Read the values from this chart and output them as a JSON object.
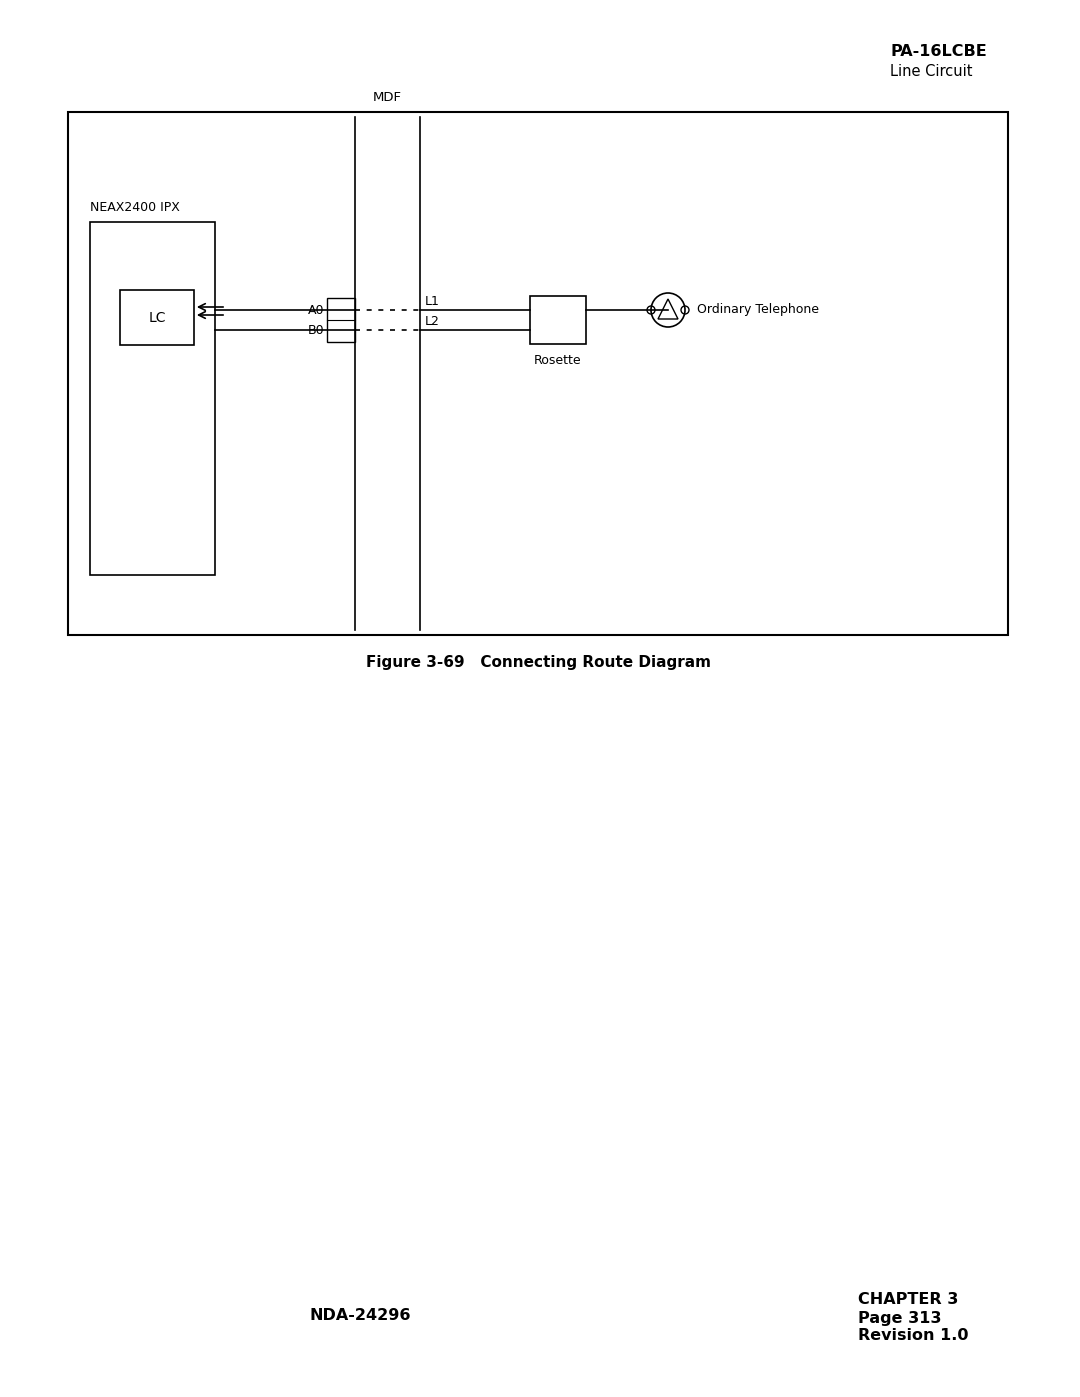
{
  "title_bold": "PA-16LCBE",
  "title_sub": "Line Circuit",
  "figure_caption": "Figure 3-69   Connecting Route Diagram",
  "footer_left": "NDA-24296",
  "footer_right_line1": "CHAPTER 3",
  "footer_right_line2": "Page 313",
  "footer_right_line3": "Revision 1.0",
  "label_neax": "NEAX2400 IPX",
  "label_lc": "LC",
  "label_mdf": "MDF",
  "label_a0": "A0",
  "label_b0": "B0",
  "label_l1": "L1",
  "label_l2": "L2",
  "label_rosette": "Rosette",
  "label_telephone": "Ordinary Telephone",
  "bg_color": "#ffffff",
  "text_color": "#000000"
}
